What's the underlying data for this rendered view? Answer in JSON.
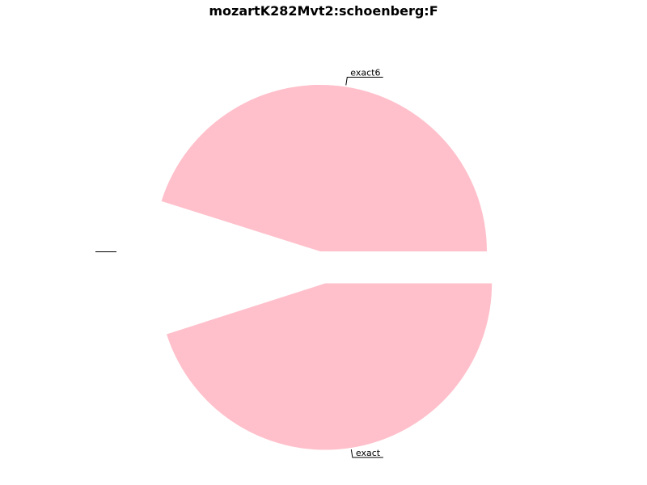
{
  "chart_data": {
    "type": "pie",
    "title": "mozartK282Mvt2:schoenberg:F",
    "slices": [
      {
        "label": "exact",
        "value": 0.4506,
        "exploded": true,
        "color": "#ffc0cb"
      },
      {
        "label": "",
        "value": 0.0982,
        "exploded": true,
        "color": "#ffffff"
      },
      {
        "label": "exact6",
        "value": 0.4512,
        "exploded": false,
        "color": "#ffc0cb"
      }
    ],
    "start_angle_deg": 0,
    "direction": "clockwise",
    "legend": "none"
  }
}
